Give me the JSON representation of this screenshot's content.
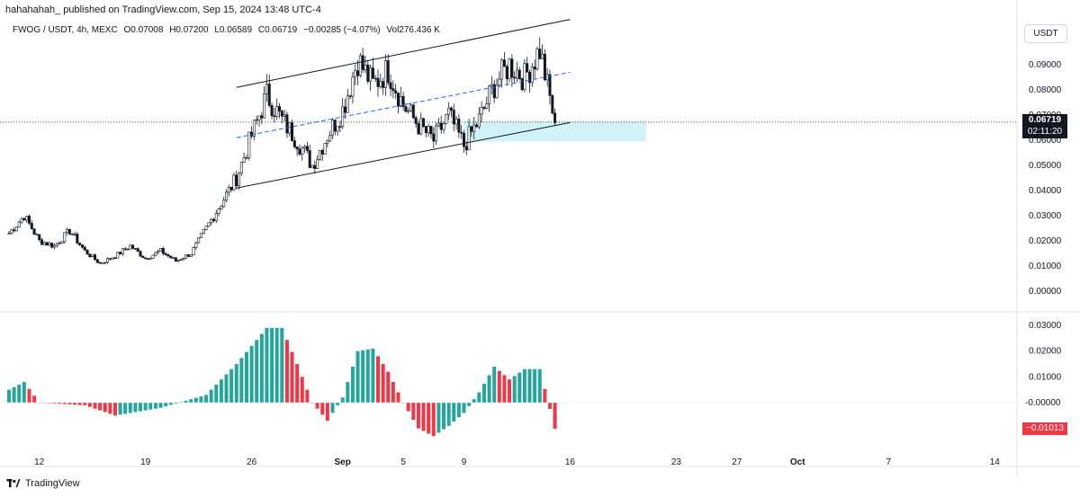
{
  "header": {
    "published": "hahahahah_ published on TradingView.com, Sep 15, 2024 13:48 UTC-4"
  },
  "symbol": {
    "name": "FWOG / USDT, 4h, MEXC",
    "open": "O0.07008",
    "high": "H0.07200",
    "low": "L0.06589",
    "close": "C0.06719",
    "change": "−0.00285 (−4.07%)",
    "volume": "Vol276.436 K"
  },
  "currency": "USDT",
  "last_price": {
    "value": "0.06719",
    "countdown": "02:11:20"
  },
  "oscillator_last": "−0.01013",
  "footer": {
    "brand": "TradingView"
  },
  "colors": {
    "up": "#26a69a",
    "down": "#ef5350",
    "osc_up": "#26a69a",
    "osc_down": "#f23645",
    "zone": "#b2ebf2",
    "midline": "#2962ff"
  },
  "chart_data": [
    {
      "type": "candlestick",
      "title": "FWOG / USDT, 4h, MEXC",
      "y_ticks": [
        "0.09000",
        "0.08000",
        "0.07000",
        "0.06000",
        "0.05000",
        "0.04000",
        "0.03000",
        "0.02000",
        "0.01000",
        "0.00000"
      ],
      "x_ticks": [
        "12",
        "19",
        "26",
        "Sep",
        "5",
        "9",
        "16",
        "23",
        "27",
        "Oct",
        "7",
        "14"
      ],
      "ylim": [
        -0.002,
        0.105
      ],
      "key_points": [
        {
          "x": "Aug 10",
          "close": 0.023
        },
        {
          "x": "Aug 11",
          "close": 0.03
        },
        {
          "x": "Aug 12",
          "close": 0.02
        },
        {
          "x": "Aug 13",
          "close": 0.018
        },
        {
          "x": "Aug 14",
          "close": 0.024
        },
        {
          "x": "Aug 15",
          "close": 0.016
        },
        {
          "x": "Aug 16",
          "close": 0.011
        },
        {
          "x": "Aug 17",
          "close": 0.014
        },
        {
          "x": "Aug 18",
          "close": 0.018
        },
        {
          "x": "Aug 19",
          "close": 0.013
        },
        {
          "x": "Aug 20",
          "close": 0.016
        },
        {
          "x": "Aug 21",
          "close": 0.012
        },
        {
          "x": "Aug 22",
          "close": 0.015
        },
        {
          "x": "Aug 23",
          "close": 0.025
        },
        {
          "x": "Aug 24",
          "close": 0.035
        },
        {
          "x": "Aug 25",
          "close": 0.045
        },
        {
          "x": "Aug 26",
          "close": 0.062
        },
        {
          "x": "Aug 27",
          "close": 0.078
        },
        {
          "x": "Aug 28",
          "close": 0.068
        },
        {
          "x": "Aug 29",
          "close": 0.06
        },
        {
          "x": "Aug 30",
          "close": 0.05
        },
        {
          "x": "Aug 31",
          "close": 0.062
        },
        {
          "x": "Sep 1",
          "close": 0.072
        },
        {
          "x": "Sep 2",
          "close": 0.092
        },
        {
          "x": "Sep 3",
          "close": 0.082
        },
        {
          "x": "Sep 4",
          "close": 0.088
        },
        {
          "x": "Sep 5",
          "close": 0.074
        },
        {
          "x": "Sep 6",
          "close": 0.066
        },
        {
          "x": "Sep 7",
          "close": 0.06
        },
        {
          "x": "Sep 8",
          "close": 0.07
        },
        {
          "x": "Sep 9",
          "close": 0.058
        },
        {
          "x": "Sep 10",
          "close": 0.068
        },
        {
          "x": "Sep 11",
          "close": 0.082
        },
        {
          "x": "Sep 12",
          "close": 0.09
        },
        {
          "x": "Sep 13",
          "close": 0.085
        },
        {
          "x": "Sep 14",
          "close": 0.096
        },
        {
          "x": "Sep 15",
          "close": 0.067
        }
      ],
      "channel": {
        "upper": [
          {
            "x": "Aug 25",
            "y": 0.081
          },
          {
            "x": "Sep 16",
            "y": 0.108
          }
        ],
        "lower": [
          {
            "x": "Aug 25",
            "y": 0.041
          },
          {
            "x": "Sep 16",
            "y": 0.067
          }
        ],
        "middle": [
          {
            "x": "Aug 25",
            "y": 0.061
          },
          {
            "x": "Sep 16",
            "y": 0.087
          }
        ]
      },
      "support_zone": {
        "x_start": "Sep 9",
        "x_end": "Sep 21",
        "y_low": 0.0595,
        "y_high": 0.0675
      }
    },
    {
      "type": "bar",
      "title": "oscillator",
      "y_ticks": [
        "0.03000",
        "0.02000",
        "0.01000",
        "-0.00000"
      ],
      "ylim": [
        -0.0135,
        0.033
      ],
      "key_points": [
        {
          "x": "Aug 10",
          "value": 0.005
        },
        {
          "x": "Aug 11",
          "value": 0.008
        },
        {
          "x": "Aug 12",
          "value": 0.0
        },
        {
          "x": "Aug 15",
          "value": -0.001
        },
        {
          "x": "Aug 17",
          "value": -0.005
        },
        {
          "x": "Aug 20",
          "value": -0.002
        },
        {
          "x": "Aug 23",
          "value": 0.003
        },
        {
          "x": "Aug 25",
          "value": 0.015
        },
        {
          "x": "Aug 27",
          "value": 0.029
        },
        {
          "x": "Aug 28",
          "value": 0.029
        },
        {
          "x": "Aug 29",
          "value": 0.015
        },
        {
          "x": "Aug 30",
          "value": 0.0
        },
        {
          "x": "Aug 31",
          "value": -0.007
        },
        {
          "x": "Sep 1",
          "value": 0.002
        },
        {
          "x": "Sep 2",
          "value": 0.02
        },
        {
          "x": "Sep 3",
          "value": 0.021
        },
        {
          "x": "Sep 4",
          "value": 0.012
        },
        {
          "x": "Sep 5",
          "value": 0.0
        },
        {
          "x": "Sep 6",
          "value": -0.01
        },
        {
          "x": "Sep 7",
          "value": -0.013
        },
        {
          "x": "Sep 8",
          "value": -0.009
        },
        {
          "x": "Sep 9",
          "value": -0.004
        },
        {
          "x": "Sep 10",
          "value": 0.004
        },
        {
          "x": "Sep 11",
          "value": 0.014
        },
        {
          "x": "Sep 12",
          "value": 0.009
        },
        {
          "x": "Sep 13",
          "value": 0.013
        },
        {
          "x": "Sep 14",
          "value": 0.013
        },
        {
          "x": "Sep 15",
          "value": -0.01013
        }
      ]
    }
  ]
}
